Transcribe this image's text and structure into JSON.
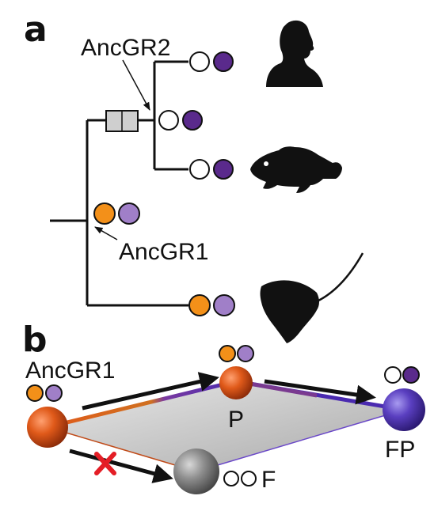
{
  "panel_a": {
    "label": "a",
    "ancgr2_label": "AncGR2",
    "ancgr1_label": "AncGR1",
    "silhouettes": [
      "human-silhouette-icon",
      "fish-silhouette-icon",
      "stingray-silhouette-icon"
    ]
  },
  "panel_b": {
    "label": "b",
    "ancgr1_label": "AncGR1",
    "p_label": "P",
    "fp_label": "FP",
    "f_label": "F",
    "blocked_marker": "red-x-icon"
  },
  "colors": {
    "orange": "#f39019",
    "light_purple": "#a07fc8",
    "dark_purple": "#5a2a8c",
    "box_gray": "#cfcfcf",
    "sphere_orange": "#e05a1a",
    "sphere_purple": "#5a3fc0",
    "sphere_gray": "#8e8e8e",
    "red_x": "#e41e26"
  }
}
